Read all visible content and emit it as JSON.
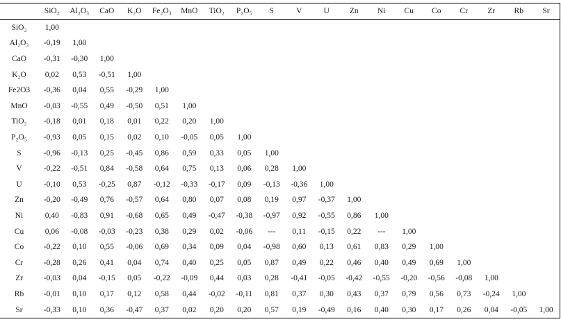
{
  "table": {
    "corner_label": "",
    "columns": [
      "SiO₂",
      "Al₂O₃",
      "CaO",
      "K₂O",
      "Fe₂O₃",
      "MnO",
      "TiO₂",
      "P₂O₅",
      "S",
      "V",
      "U",
      "Zn",
      "Ni",
      "Cu",
      "Co",
      "Cr",
      "Zr",
      "Rb",
      "Sr"
    ],
    "rows": [
      {
        "label": "SiO₂",
        "values": [
          "1,00"
        ]
      },
      {
        "label": "Al₂O₃",
        "values": [
          "-0,19",
          "1,00"
        ]
      },
      {
        "label": "CaO",
        "values": [
          "-0,31",
          "-0,30",
          "1,00"
        ]
      },
      {
        "label": "K₂O",
        "values": [
          "0,02",
          "0,53",
          "-0,51",
          "1,00"
        ]
      },
      {
        "label": "Fe2O3",
        "values": [
          "-0,36",
          "0,04",
          "0,55",
          "-0,29",
          "1,00"
        ]
      },
      {
        "label": "MnO",
        "values": [
          "-0,03",
          "-0,55",
          "0,49",
          "-0,50",
          "0,51",
          "1,00"
        ]
      },
      {
        "label": "TiO₂",
        "values": [
          "-0,18",
          "0,01",
          "0,18",
          "0,01",
          "0,22",
          "0,20",
          "1,00"
        ]
      },
      {
        "label": "P₂O₅",
        "values": [
          "-0,93",
          "0,05",
          "0,15",
          "0,02",
          "0,10",
          "-0,05",
          "0,05",
          "1,00"
        ]
      },
      {
        "label": "S",
        "values": [
          "-0,96",
          "-0,13",
          "0,25",
          "-0,45",
          "0,86",
          "0,59",
          "0,33",
          "0,05",
          "1,00"
        ]
      },
      {
        "label": "V",
        "values": [
          "-0,22",
          "-0,51",
          "0,84",
          "-0,58",
          "0,64",
          "0,75",
          "0,13",
          "0,06",
          "0,28",
          "1,00"
        ]
      },
      {
        "label": "U",
        "values": [
          "-0,10",
          "0,53",
          "-0,25",
          "0,87",
          "-0,12",
          "-0,33",
          "-0,17",
          "0,09",
          "-0,13",
          "-0,36",
          "1,00"
        ]
      },
      {
        "label": "Zn",
        "values": [
          "-0,20",
          "-0,49",
          "0,76",
          "-0,57",
          "0,64",
          "0,80",
          "0,07",
          "0,08",
          "0,19",
          "0,97",
          "-0,37",
          "1,00"
        ]
      },
      {
        "label": "Ni",
        "values": [
          "0,40",
          "-0,83",
          "0,91",
          "-0,68",
          "0,65",
          "0,49",
          "-0,47",
          "-0,38",
          "-0,97",
          "0,92",
          "-0,55",
          "0,86",
          "1,00"
        ]
      },
      {
        "label": "Cu",
        "values": [
          "0,06",
          "-0,08",
          "-0,03",
          "-0,23",
          "0,38",
          "0,29",
          "0,02",
          "-0,06",
          "---",
          "0,11",
          "-0,15",
          "0,22",
          "---",
          "1,00"
        ]
      },
      {
        "label": "Co",
        "values": [
          "-0,22",
          "0,10",
          "0,55",
          "-0,06",
          "0,69",
          "0,34",
          "0,09",
          "0,04",
          "-0,98",
          "0,60",
          "0,13",
          "0,61",
          "0,83",
          "0,29",
          "1,00"
        ]
      },
      {
        "label": "Cr",
        "values": [
          "-0,28",
          "0,26",
          "0,41",
          "0,04",
          "0,74",
          "0,40",
          "0,25",
          "0,05",
          "0,87",
          "0,49",
          "0,22",
          "0,46",
          "0,40",
          "0,49",
          "0,69",
          "1,00"
        ]
      },
      {
        "label": "Zr",
        "values": [
          "-0,03",
          "0,04",
          "-0,15",
          "0,05",
          "-0,22",
          "-0,09",
          "0,44",
          "0,03",
          "0,28",
          "-0,41",
          "-0,05",
          "-0,42",
          "-0,55",
          "-0,20",
          "-0,56",
          "-0,08",
          "1,00"
        ]
      },
      {
        "label": "Rb",
        "values": [
          "-0,01",
          "0,10",
          "0,17",
          "0,12",
          "0,58",
          "0,44",
          "-0,02",
          "-0,11",
          "0,81",
          "0,37",
          "0,30",
          "0,43",
          "0,37",
          "0,79",
          "0,56",
          "0,73",
          "-0,24",
          "1,00"
        ]
      },
      {
        "label": "Sr",
        "values": [
          "-0,33",
          "0,10",
          "0,36",
          "-0,47",
          "0,37",
          "0,02",
          "0,20",
          "0,20",
          "0,57",
          "0,19",
          "-0,49",
          "0,16",
          "0,40",
          "0,30",
          "0,17",
          "0,26",
          "0,04",
          "-0,05",
          "1,00"
        ]
      }
    ]
  }
}
